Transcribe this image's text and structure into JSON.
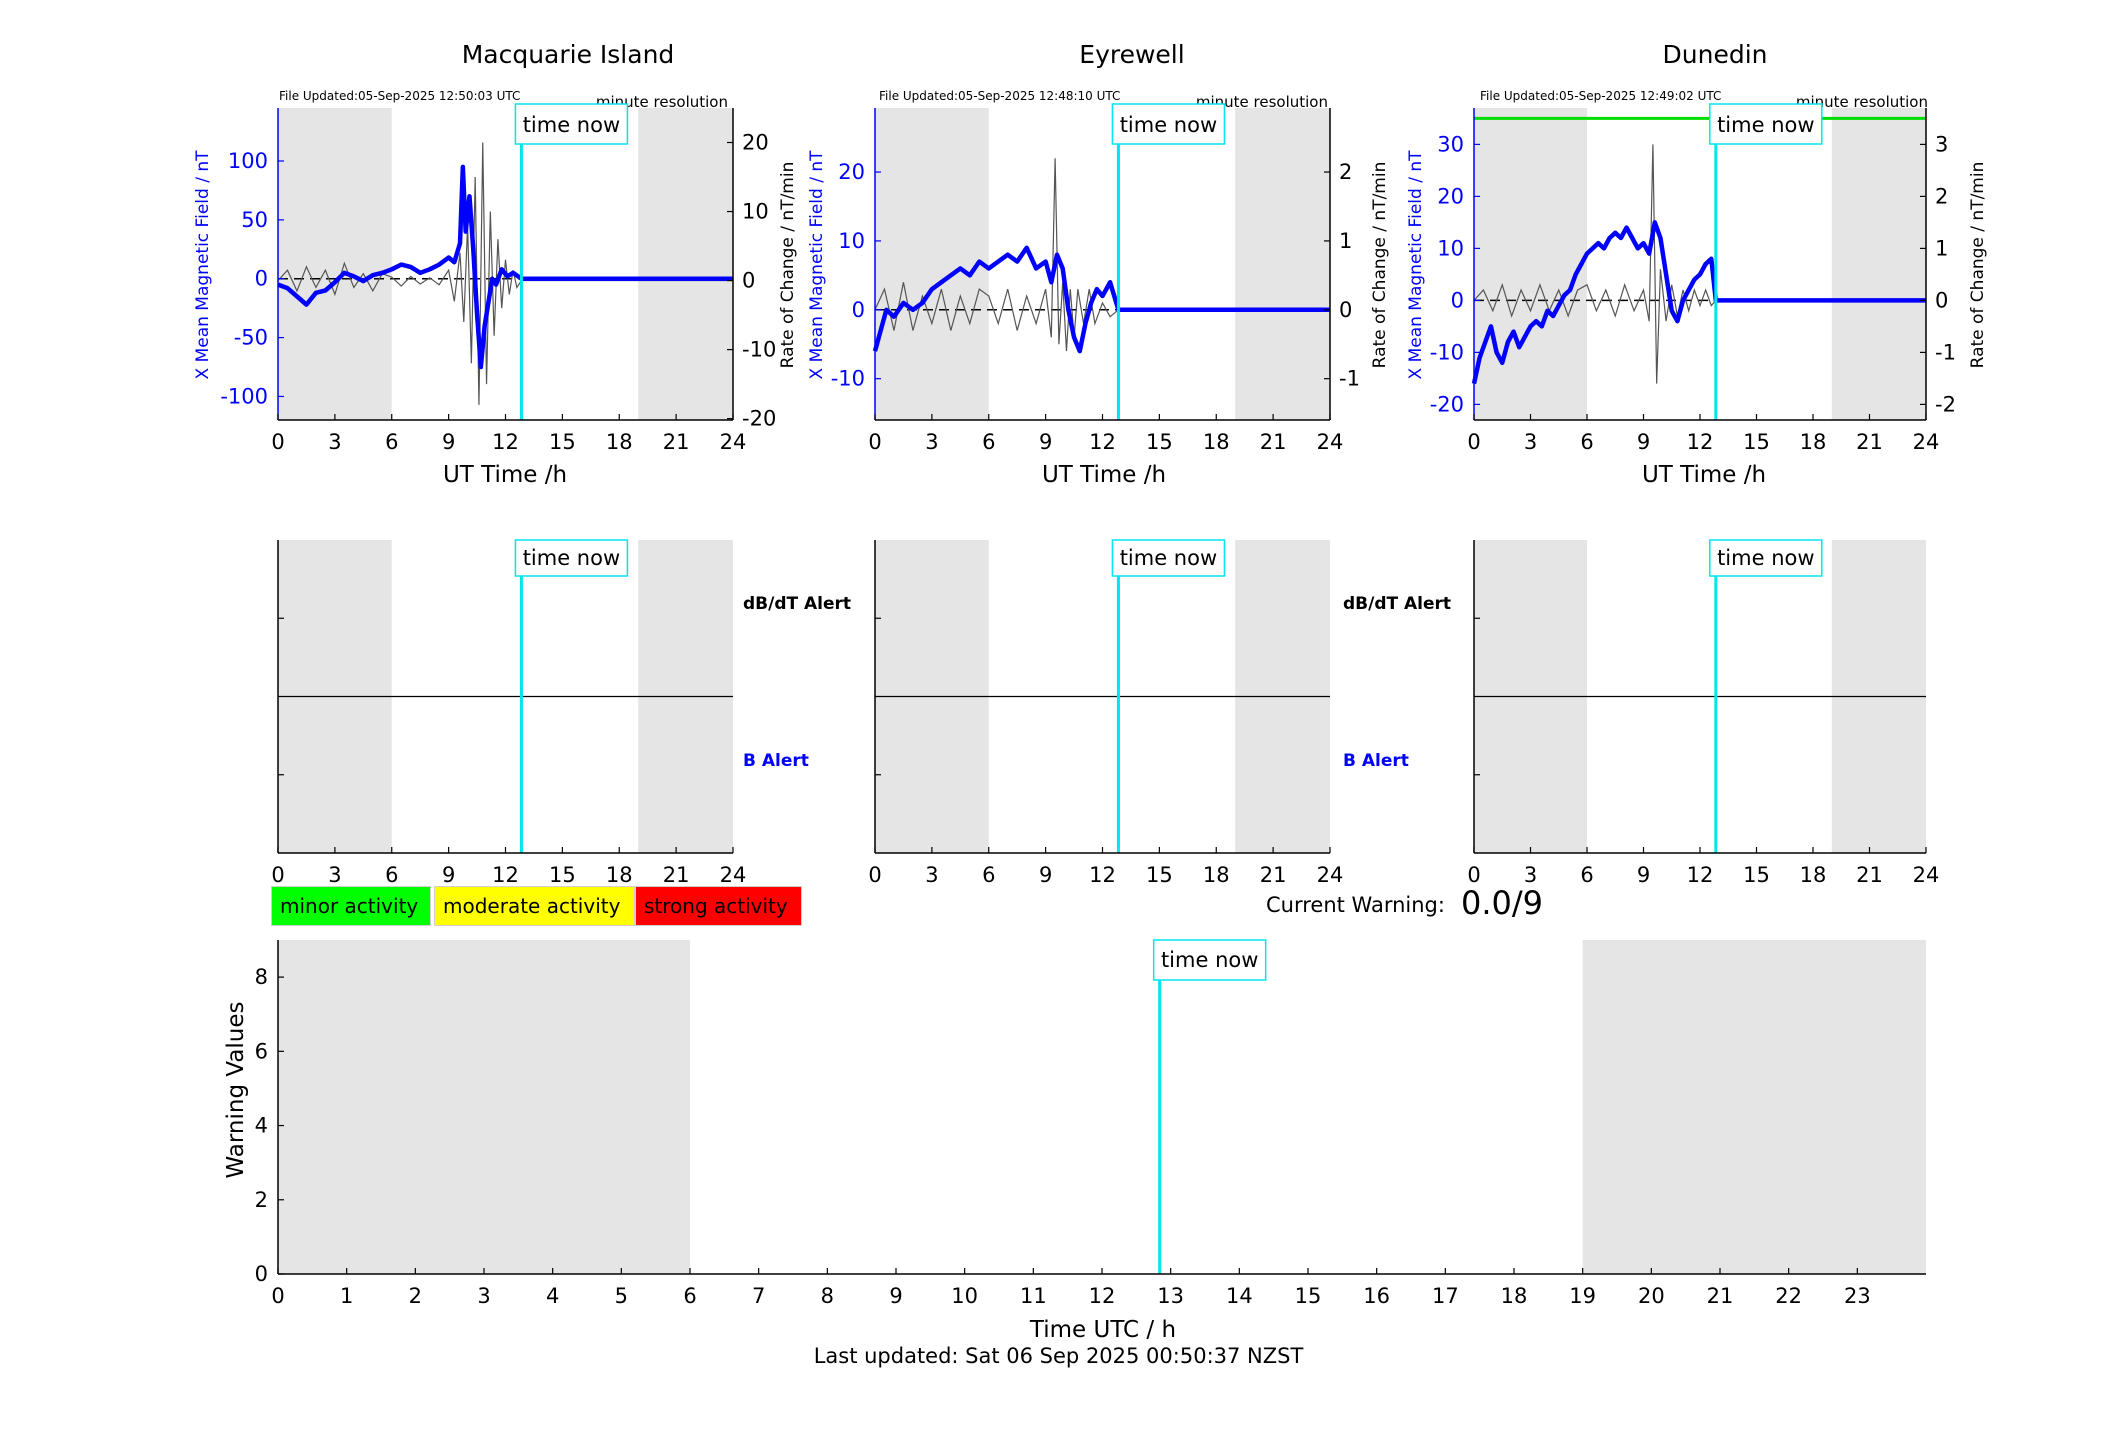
{
  "colors": {
    "x_field": "#0000ff",
    "rate": "#555555",
    "time_now": "#00e5ee",
    "night_shade": "#e5e5e5",
    "threshold": "#00dd00"
  },
  "time_now_label": "time now",
  "time_now_h": 12.84,
  "top_axis_xlabel": "UT Time /h",
  "left_axis_label": "X Mean Magnetic Field / nT",
  "right_axis_label": "Rate of Change / nT/min",
  "resolution_label": "minute resolution",
  "stations": [
    {
      "name": "Macquarie Island",
      "file_updated": "File Updated:05-Sep-2025 12:50:03 UTC"
    },
    {
      "name": "Eyrewell",
      "file_updated": "File Updated:05-Sep-2025 12:48:10 UTC"
    },
    {
      "name": "Dunedin",
      "file_updated": "File Updated:05-Sep-2025 12:49:02 UTC"
    }
  ],
  "alerts": {
    "dbdt": "dB/dT Alert",
    "b": "B Alert"
  },
  "legend": {
    "minor": "minor activity",
    "moderate": "moderate activity",
    "strong": "strong activity"
  },
  "current_warning": {
    "label": "Current Warning:",
    "value": "0.0/9"
  },
  "warning_chart": {
    "ylabel": "Warning Values",
    "xlabel": "Time UTC / h"
  },
  "last_updated": "Last updated: Sat 06 Sep 2025 00:50:37 NZST",
  "chart_data": [
    {
      "type": "line",
      "title": "Macquarie Island",
      "xlabel": "UT Time /h",
      "ylabel": "X Mean Magnetic Field / nT",
      "y2label": "Rate of Change / nT/min",
      "xlim": [
        0,
        24
      ],
      "ylim": [
        -120,
        145
      ],
      "y2lim": [
        -20.2,
        25
      ],
      "xticks": [
        0,
        3,
        6,
        9,
        12,
        15,
        18,
        21,
        24
      ],
      "yticks": [
        -100,
        -50,
        0,
        50,
        100
      ],
      "y2ticks": [
        -20,
        -10,
        0,
        10,
        20
      ],
      "night_shading_h": [
        [
          0,
          6
        ],
        [
          19,
          24
        ]
      ],
      "time_now_h": 12.84,
      "series": [
        {
          "name": "X Mean Magnetic Field / nT",
          "axis": "left",
          "x": [
            0,
            0.5,
            1,
            1.5,
            2,
            2.5,
            3,
            3.5,
            4,
            4.5,
            5,
            5.5,
            6,
            6.5,
            7,
            7.5,
            8,
            8.5,
            9,
            9.3,
            9.6,
            9.75,
            9.9,
            10.1,
            10.3,
            10.5,
            10.7,
            10.9,
            11.1,
            11.3,
            11.5,
            11.8,
            12.1,
            12.4,
            12.84,
            24
          ],
          "y": [
            -5,
            -8,
            -15,
            -22,
            -12,
            -10,
            -3,
            5,
            2,
            -2,
            3,
            5,
            8,
            12,
            10,
            5,
            8,
            12,
            18,
            14,
            30,
            95,
            40,
            70,
            25,
            -30,
            -75,
            -40,
            -20,
            0,
            -5,
            8,
            2,
            5,
            0,
            0
          ]
        },
        {
          "name": "Rate of Change / nT/min",
          "axis": "right",
          "x": [
            0,
            0.5,
            1,
            1.5,
            2,
            2.5,
            3,
            3.5,
            4,
            4.5,
            5,
            5.5,
            6,
            6.5,
            7,
            7.5,
            8,
            8.5,
            9,
            9.3,
            9.6,
            9.8,
            10,
            10.2,
            10.4,
            10.6,
            10.8,
            11,
            11.2,
            11.4,
            11.6,
            11.8,
            12,
            12.2,
            12.4,
            12.6,
            12.84,
            24
          ],
          "y": [
            0,
            1.5,
            -1.5,
            2,
            -1,
            1.5,
            -2,
            2.5,
            -1,
            1,
            -1.5,
            1,
            0.5,
            -0.8,
            0.6,
            -0.5,
            0.4,
            -0.6,
            1.5,
            -3,
            4,
            -6,
            8,
            -12,
            15,
            -18,
            20,
            -15,
            10,
            -8,
            6,
            -4,
            3,
            -2,
            1.5,
            -1,
            0,
            0
          ]
        }
      ]
    },
    {
      "type": "line",
      "title": "Eyrewell",
      "xlabel": "UT Time /h",
      "ylabel": "X Mean Magnetic Field / nT",
      "y2label": "Rate of Change / nT/min",
      "xlim": [
        0,
        24
      ],
      "ylim": [
        -16,
        29.3
      ],
      "y2lim": [
        -1.6,
        2.93
      ],
      "xticks": [
        0,
        3,
        6,
        9,
        12,
        15,
        18,
        21,
        24
      ],
      "yticks": [
        -10,
        0,
        10,
        20
      ],
      "y2ticks": [
        -1,
        0,
        1,
        2
      ],
      "night_shading_h": [
        [
          0,
          6
        ],
        [
          19,
          24
        ]
      ],
      "time_now_h": 12.84,
      "series": [
        {
          "name": "X Mean Magnetic Field / nT",
          "axis": "left",
          "x": [
            0,
            0.3,
            0.6,
            1,
            1.5,
            2,
            2.5,
            3,
            3.5,
            4,
            4.5,
            5,
            5.5,
            6,
            6.5,
            7,
            7.5,
            8,
            8.5,
            9,
            9.3,
            9.6,
            9.9,
            10.2,
            10.5,
            10.8,
            11.1,
            11.4,
            11.7,
            12,
            12.4,
            12.84,
            24
          ],
          "y": [
            -6,
            -3,
            0,
            -1,
            1,
            0,
            1,
            3,
            4,
            5,
            6,
            5,
            7,
            6,
            7,
            8,
            7,
            9,
            6,
            7,
            4,
            8,
            6,
            0,
            -4,
            -6,
            -2,
            1,
            3,
            2,
            4,
            0,
            0
          ]
        },
        {
          "name": "Rate of Change / nT/min",
          "axis": "right",
          "x": [
            0,
            0.5,
            1,
            1.5,
            2,
            2.5,
            3,
            3.5,
            4,
            4.5,
            5,
            5.5,
            6,
            6.5,
            7,
            7.5,
            8,
            8.5,
            9,
            9.3,
            9.5,
            9.7,
            9.9,
            10.1,
            10.3,
            10.5,
            10.7,
            11,
            11.3,
            11.6,
            12,
            12.4,
            12.84,
            24
          ],
          "y": [
            0,
            0.3,
            -0.3,
            0.4,
            -0.3,
            0.2,
            -0.2,
            0.3,
            -0.3,
            0.2,
            -0.2,
            0.3,
            0.2,
            -0.2,
            0.3,
            -0.3,
            0.2,
            -0.2,
            0.3,
            -0.4,
            2.2,
            -0.5,
            0.4,
            -0.6,
            0.3,
            -0.4,
            0.3,
            -0.2,
            0.3,
            -0.2,
            0.1,
            -0.1,
            0,
            0
          ]
        }
      ]
    },
    {
      "type": "line",
      "title": "Dunedin",
      "xlabel": "UT Time /h",
      "ylabel": "X Mean Magnetic Field / nT",
      "y2label": "Rate of Change / nT/min",
      "xlim": [
        0,
        24
      ],
      "ylim": [
        -23,
        37
      ],
      "y2lim": [
        -2.3,
        3.7
      ],
      "xticks": [
        0,
        3,
        6,
        9,
        12,
        15,
        18,
        21,
        24
      ],
      "yticks": [
        -20,
        -10,
        0,
        10,
        20,
        30
      ],
      "y2ticks": [
        -2,
        -1,
        0,
        1,
        2,
        3
      ],
      "night_shading_h": [
        [
          0,
          6
        ],
        [
          19,
          24
        ]
      ],
      "threshold_y": 35,
      "time_now_h": 12.84,
      "series": [
        {
          "name": "X Mean Magnetic Field / nT",
          "axis": "left",
          "x": [
            0,
            0.3,
            0.6,
            0.9,
            1.2,
            1.5,
            1.8,
            2.1,
            2.4,
            2.7,
            3,
            3.3,
            3.6,
            3.9,
            4.2,
            4.5,
            4.8,
            5.1,
            5.4,
            5.7,
            6,
            6.3,
            6.6,
            6.9,
            7.2,
            7.5,
            7.8,
            8.1,
            8.4,
            8.7,
            9,
            9.3,
            9.6,
            9.9,
            10.2,
            10.5,
            10.8,
            11.1,
            11.4,
            11.7,
            12,
            12.3,
            12.6,
            12.84,
            24
          ],
          "y": [
            -16,
            -11,
            -8,
            -5,
            -10,
            -12,
            -8,
            -6,
            -9,
            -7,
            -5,
            -4,
            -5,
            -2,
            -3,
            -1,
            1,
            2,
            5,
            7,
            9,
            10,
            11,
            10,
            12,
            13,
            12,
            14,
            12,
            10,
            11,
            9,
            15,
            12,
            5,
            -2,
            -4,
            0,
            2,
            4,
            5,
            7,
            8,
            0,
            0
          ]
        },
        {
          "name": "Rate of Change / nT/min",
          "axis": "right",
          "x": [
            0,
            0.5,
            1,
            1.5,
            2,
            2.5,
            3,
            3.5,
            4,
            4.5,
            5,
            5.5,
            6,
            6.5,
            7,
            7.5,
            8,
            8.5,
            9,
            9.3,
            9.5,
            9.7,
            9.9,
            10.2,
            10.5,
            10.8,
            11.1,
            11.4,
            11.7,
            12,
            12.3,
            12.6,
            12.84,
            24
          ],
          "y": [
            0,
            0.2,
            -0.2,
            0.3,
            -0.3,
            0.2,
            -0.2,
            0.3,
            -0.2,
            0.2,
            -0.3,
            0.2,
            0.3,
            -0.2,
            0.2,
            -0.3,
            0.3,
            -0.2,
            0.2,
            -0.4,
            3,
            -1.6,
            0.6,
            -0.4,
            0.3,
            -0.3,
            0.2,
            -0.2,
            0.2,
            -0.1,
            0.2,
            -0.1,
            0,
            0
          ]
        }
      ]
    },
    {
      "type": "line",
      "title": "",
      "xlabel": "Time UTC / h",
      "ylabel": "Warning Values",
      "xlim": [
        0,
        24
      ],
      "ylim": [
        0,
        9
      ],
      "xticks": [
        0,
        1,
        2,
        3,
        4,
        5,
        6,
        7,
        8,
        9,
        10,
        11,
        12,
        13,
        14,
        15,
        16,
        17,
        18,
        19,
        20,
        21,
        22,
        23
      ],
      "yticks": [
        0,
        2,
        4,
        6,
        8
      ],
      "night_shading_h": [
        [
          0,
          6
        ],
        [
          19,
          24
        ]
      ],
      "time_now_h": 12.84,
      "current_value": 0.0
    }
  ]
}
